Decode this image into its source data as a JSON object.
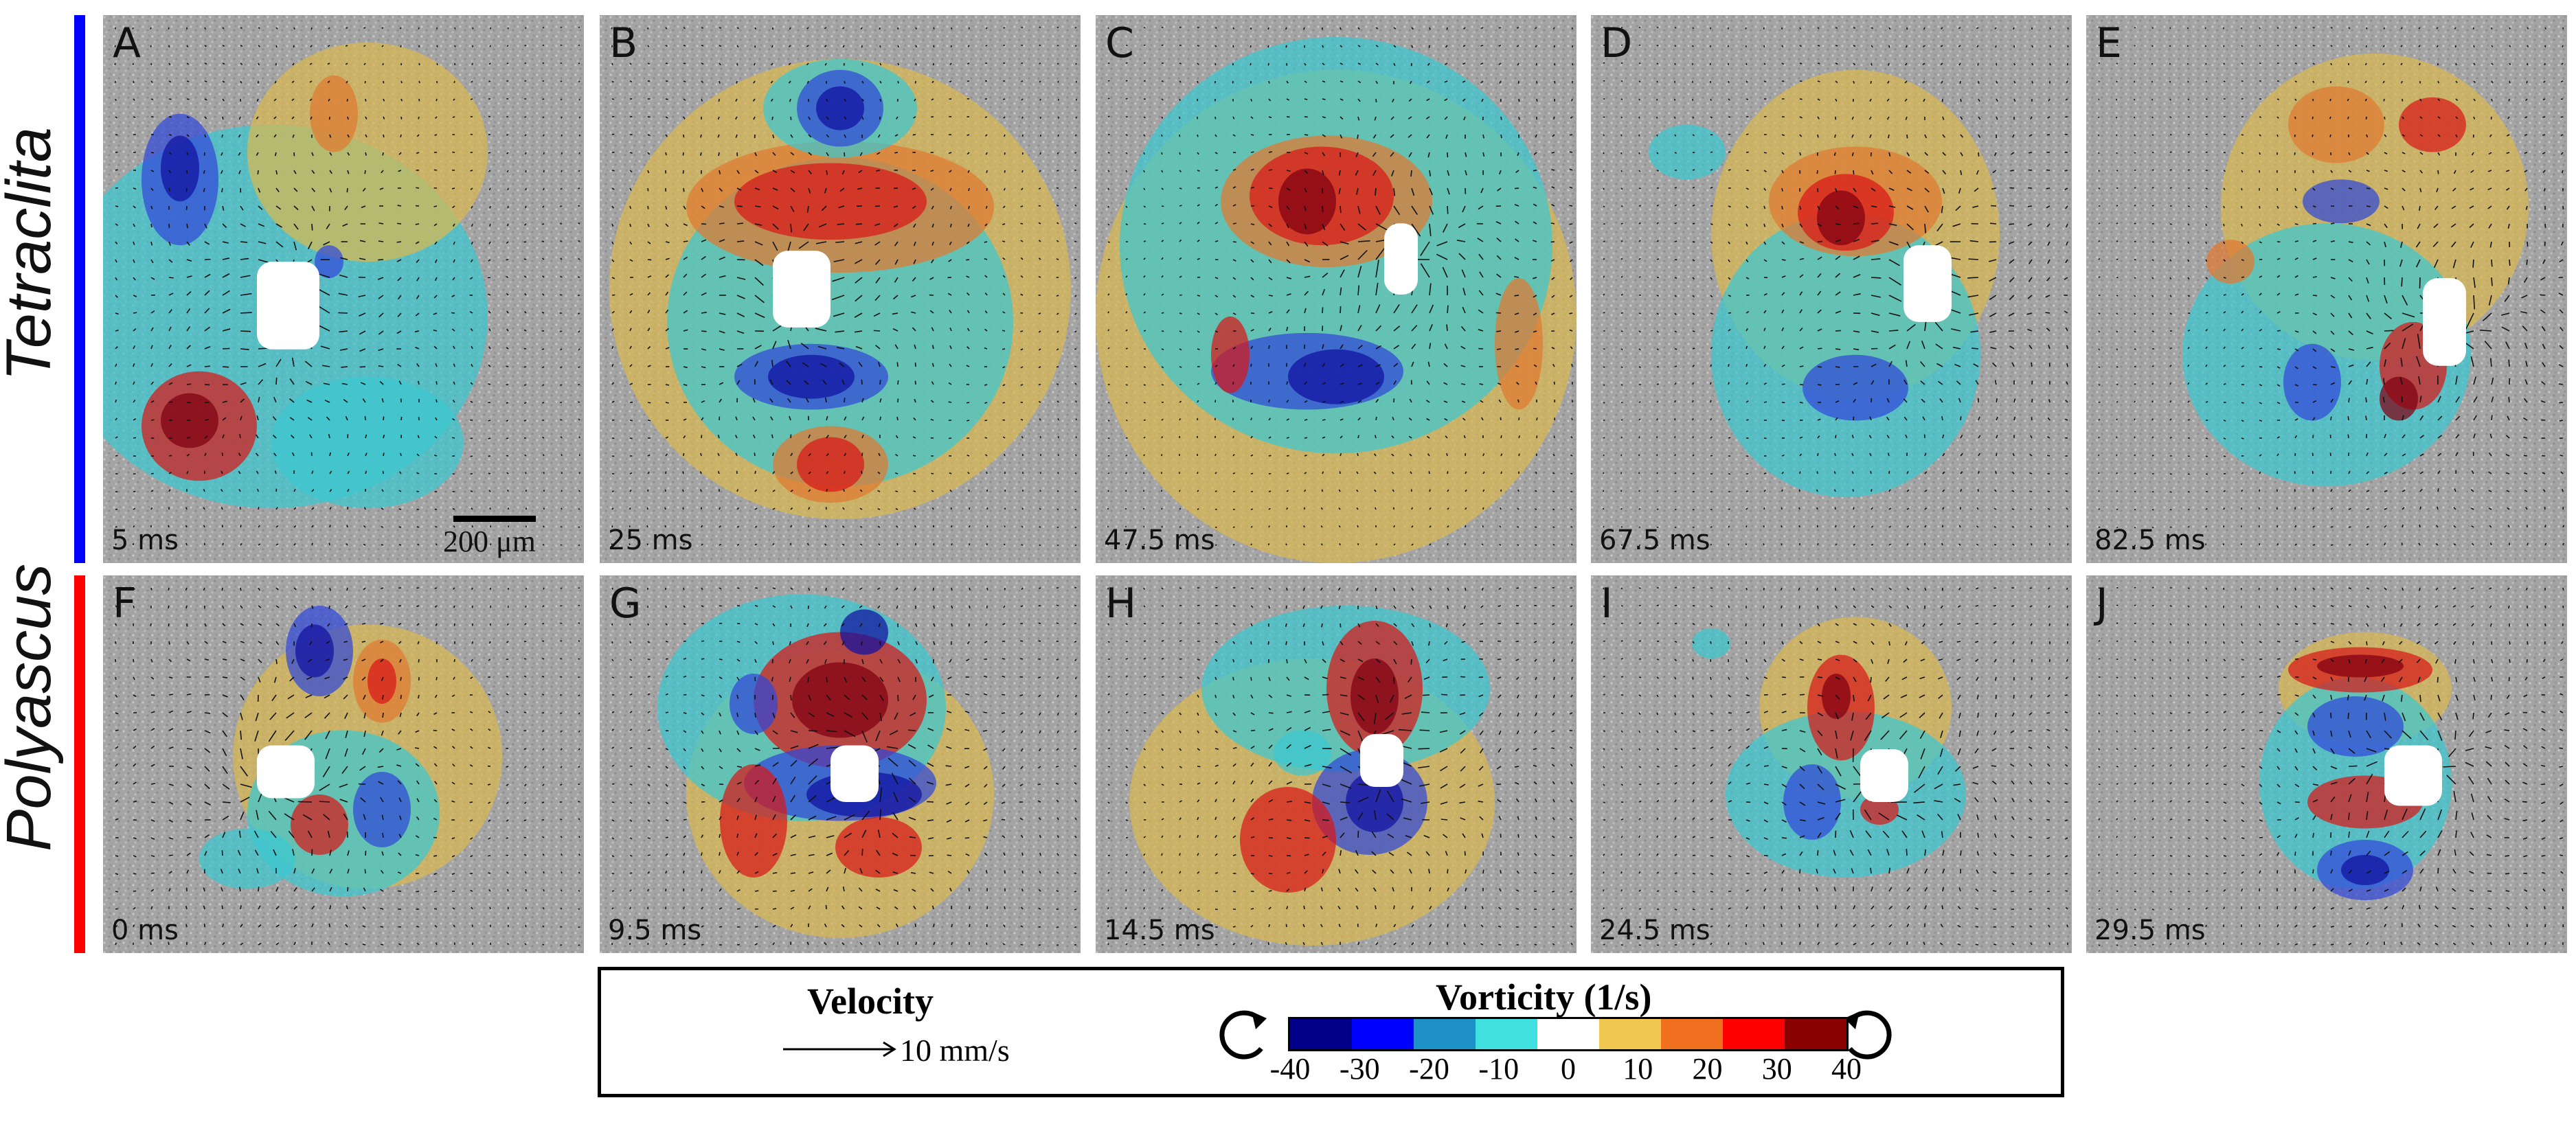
{
  "rows": [
    {
      "label": "Tetraclita",
      "bar_color": "#0000ff"
    },
    {
      "label": "Polyascus",
      "bar_color": "#ff0000"
    }
  ],
  "panels": [
    {
      "letter": "A",
      "time": "5 ms"
    },
    {
      "letter": "B",
      "time": "25 ms"
    },
    {
      "letter": "C",
      "time": "47.5 ms"
    },
    {
      "letter": "D",
      "time": "67.5 ms"
    },
    {
      "letter": "E",
      "time": "82.5 ms"
    },
    {
      "letter": "F",
      "time": "0 ms"
    },
    {
      "letter": "G",
      "time": "9.5 ms"
    },
    {
      "letter": "H",
      "time": "14.5 ms"
    },
    {
      "letter": "I",
      "time": "24.5 ms"
    },
    {
      "letter": "J",
      "time": "29.5 ms"
    }
  ],
  "scale_bar": {
    "label": "200 μm"
  },
  "legend": {
    "velocity_title": "Velocity",
    "velocity_ref": "10 mm/s",
    "vorticity_title": "Vorticity (1/s)",
    "colorbar_ticks": [
      "-40",
      "-30",
      "-20",
      "-10",
      "0",
      "10",
      "20",
      "30",
      "40"
    ],
    "colorbar_colors": [
      "#00008b",
      "#0000ff",
      "#1e90c8",
      "#40e0e0",
      "#ffffff",
      "#f0c850",
      "#f07020",
      "#ff0000",
      "#8b0000"
    ]
  },
  "colors": {
    "dark_blue": "#1010a0",
    "blue": "#3048d8",
    "cyan": "#3cc8d0",
    "yellow": "#d8b850",
    "orange": "#e07830",
    "red": "#d81818",
    "dark_red": "#800010",
    "background_gray": "#a8a8a8"
  }
}
